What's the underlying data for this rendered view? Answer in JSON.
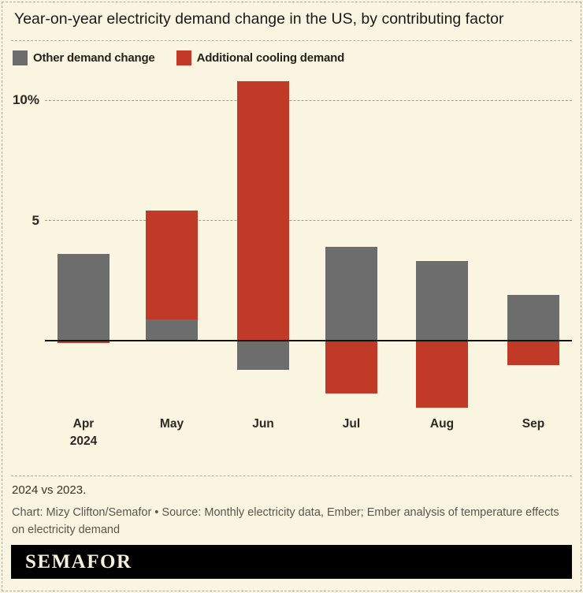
{
  "header": {
    "title": "Year-on-year electricity demand change in the US, by contributing factor"
  },
  "legend": {
    "items": [
      {
        "label": "Other demand change",
        "color": "#6d6d6d"
      },
      {
        "label": "Additional cooling demand",
        "color": "#c03a27"
      }
    ]
  },
  "chart_data": {
    "type": "bar",
    "stacked": true,
    "title": "Year-on-year electricity demand change in the US, by contributing factor",
    "unit": "%",
    "categories": [
      {
        "label": "Apr",
        "sublabel": "2024"
      },
      {
        "label": "May",
        "sublabel": ""
      },
      {
        "label": "Jun",
        "sublabel": ""
      },
      {
        "label": "Jul",
        "sublabel": ""
      },
      {
        "label": "Aug",
        "sublabel": ""
      },
      {
        "label": "Sep",
        "sublabel": ""
      }
    ],
    "series": [
      {
        "name": "Other demand change",
        "color": "#6d6d6d",
        "values": [
          3.6,
          0.9,
          -1.2,
          3.9,
          3.3,
          1.9
        ]
      },
      {
        "name": "Additional cooling demand",
        "color": "#c03a27",
        "values": [
          -0.1,
          4.5,
          10.8,
          -2.2,
          -2.8,
          -1.0
        ]
      }
    ],
    "yticks": [
      {
        "value": 10,
        "label": "10%"
      },
      {
        "value": 5,
        "label": "5"
      }
    ],
    "ylim": [
      -3.5,
      11.2
    ],
    "grid": "dashed-horizontal",
    "legend_position": "top-left",
    "baseline": 0
  },
  "footer": {
    "note": "2024 vs 2023.",
    "credit": "Chart: Mizy Clifton/Semafor • Source: Monthly electricity data, Ember; Ember analysis of temperature effects on electricity demand",
    "logo_text": "SEMAFOR"
  },
  "colors": {
    "background": "#faf5e1",
    "axis_line": "#14130e",
    "gridline": "#a39d8a",
    "text_dark": "#191919",
    "text_muted": "#5a564b",
    "logo_background": "#000000",
    "logo_text": "#f6f1dc"
  }
}
